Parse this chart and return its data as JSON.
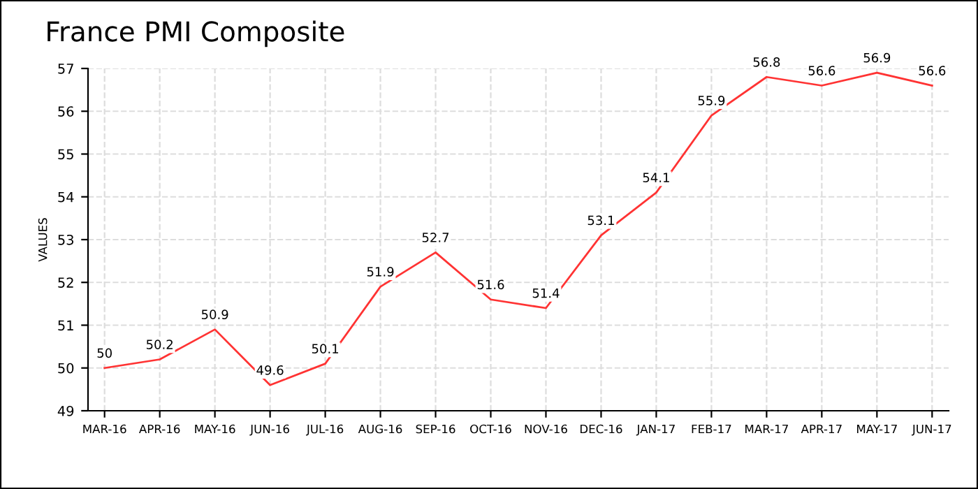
{
  "chart_data": {
    "type": "line",
    "title": "France PMI Composite",
    "ylabel": "VALUES",
    "categories": [
      "MAR-16",
      "APR-16",
      "MAY-16",
      "JUN-16",
      "JUL-16",
      "AUG-16",
      "SEP-16",
      "OCT-16",
      "NOV-16",
      "DEC-16",
      "JAN-17",
      "FEB-17",
      "MAR-17",
      "APR-17",
      "MAY-17",
      "JUN-17"
    ],
    "series": [
      {
        "color": "#ff3333",
        "values": [
          50,
          50.2,
          50.9,
          49.6,
          50.1,
          51.9,
          52.7,
          51.6,
          51.4,
          53.1,
          54.1,
          55.9,
          56.8,
          56.6,
          56.9,
          56.6
        ]
      }
    ],
    "ylim": [
      49,
      57
    ],
    "yticks": [
      49,
      50,
      51,
      52,
      53,
      54,
      55,
      56,
      57
    ],
    "grid": true,
    "data_labels": true,
    "marker": "none",
    "line_style": "solid",
    "legend": false
  }
}
